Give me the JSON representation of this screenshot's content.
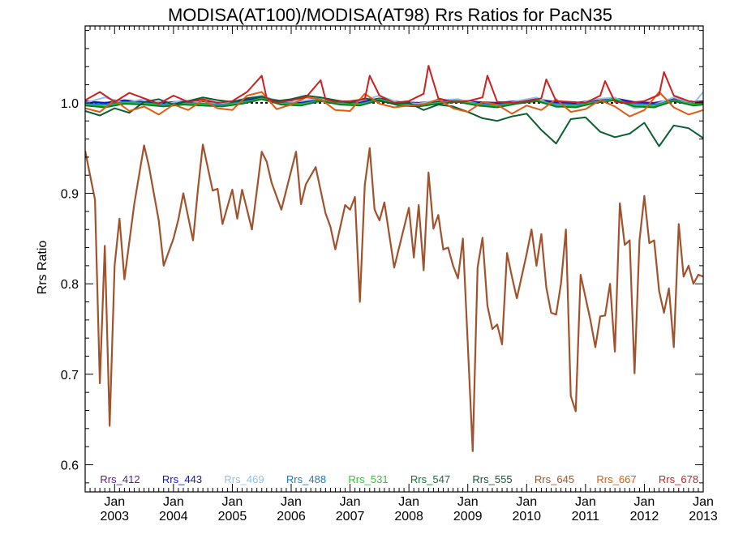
{
  "chart_data": {
    "type": "line",
    "title": "MODISA(AT100)/MODISA(AT98)  Rrs Ratios for PacN35",
    "xlabel": "",
    "ylabel": "Rrs Ratio",
    "xlim": [
      "2002-07",
      "2013-01"
    ],
    "ylim": [
      0.57,
      1.085
    ],
    "reference_line": 1.0,
    "x_ticks": [
      {
        "date": "2003-01",
        "label_top": "Jan",
        "label_bottom": "2003"
      },
      {
        "date": "2004-01",
        "label_top": "Jan",
        "label_bottom": "2004"
      },
      {
        "date": "2005-01",
        "label_top": "Jan",
        "label_bottom": "2005"
      },
      {
        "date": "2006-01",
        "label_top": "Jan",
        "label_bottom": "2006"
      },
      {
        "date": "2007-01",
        "label_top": "Jan",
        "label_bottom": "2007"
      },
      {
        "date": "2008-01",
        "label_top": "Jan",
        "label_bottom": "2008"
      },
      {
        "date": "2009-01",
        "label_top": "Jan",
        "label_bottom": "2009"
      },
      {
        "date": "2010-01",
        "label_top": "Jan",
        "label_bottom": "2010"
      },
      {
        "date": "2011-01",
        "label_top": "Jan",
        "label_bottom": "2011"
      },
      {
        "date": "2012-01",
        "label_top": "Jan",
        "label_bottom": "2012"
      },
      {
        "date": "2013-01",
        "label_top": "Jan",
        "label_bottom": "2013"
      }
    ],
    "y_ticks": [
      {
        "value": 0.6,
        "label": "0.6"
      },
      {
        "value": 0.7,
        "label": "0.7"
      },
      {
        "value": 0.8,
        "label": "0.8"
      },
      {
        "value": 0.9,
        "label": "0.9"
      },
      {
        "value": 1.0,
        "label": "1.0"
      }
    ],
    "series": [
      {
        "name": "Rrs_412",
        "color": "#5b1a8c",
        "x": [
          "2002-07",
          "2002-11",
          "2003-03",
          "2003-07",
          "2003-11",
          "2004-03",
          "2004-07",
          "2004-11",
          "2005-03",
          "2005-07",
          "2005-11",
          "2006-03",
          "2006-07",
          "2006-11",
          "2007-03",
          "2007-07",
          "2007-11",
          "2008-03",
          "2008-07",
          "2008-11",
          "2009-03",
          "2009-07",
          "2009-11",
          "2010-03",
          "2010-07",
          "2010-11",
          "2011-03",
          "2011-07",
          "2011-11",
          "2012-03",
          "2012-07",
          "2012-11",
          "2013-01"
        ],
        "values": [
          1.002,
          1.0,
          1.003,
          1.001,
          1.0,
          1.002,
          1.001,
          1.0,
          1.003,
          1.006,
          1.002,
          1.001,
          1.004,
          1.002,
          1.001,
          1.005,
          1.001,
          1.0,
          1.002,
          1.003,
          1.001,
          1.0,
          1.002,
          1.004,
          1.001,
          1.0,
          1.003,
          1.005,
          1.001,
          1.0,
          1.004,
          1.001,
          1.002
        ]
      },
      {
        "name": "Rrs_443",
        "color": "#0a14d0",
        "x": [
          "2002-07",
          "2002-11",
          "2003-03",
          "2003-07",
          "2003-11",
          "2004-03",
          "2004-07",
          "2004-11",
          "2005-03",
          "2005-07",
          "2005-11",
          "2006-03",
          "2006-07",
          "2006-11",
          "2007-03",
          "2007-07",
          "2007-11",
          "2008-03",
          "2008-07",
          "2008-11",
          "2009-03",
          "2009-07",
          "2009-11",
          "2010-03",
          "2010-07",
          "2010-11",
          "2011-03",
          "2011-07",
          "2011-11",
          "2012-03",
          "2012-07",
          "2012-11",
          "2013-01"
        ],
        "values": [
          1.001,
          1.0,
          1.002,
          1.001,
          0.999,
          1.001,
          1.0,
          0.999,
          1.002,
          1.005,
          1.001,
          1.0,
          1.003,
          1.001,
          1.0,
          1.004,
          1.0,
          0.999,
          1.001,
          1.002,
          1.0,
          0.999,
          1.001,
          1.003,
          1.0,
          0.999,
          1.002,
          1.004,
          1.0,
          0.999,
          1.003,
          1.0,
          1.001
        ]
      },
      {
        "name": "Rrs_469",
        "color": "#8fc3ea",
        "x": [
          "2002-07",
          "2002-11",
          "2003-03",
          "2003-07",
          "2003-11",
          "2004-03",
          "2004-07",
          "2004-11",
          "2005-03",
          "2005-07",
          "2005-11",
          "2006-03",
          "2006-07",
          "2006-11",
          "2007-03",
          "2007-07",
          "2007-11",
          "2008-03",
          "2008-07",
          "2008-11",
          "2009-03",
          "2009-07",
          "2009-11",
          "2010-03",
          "2010-07",
          "2010-11",
          "2011-03",
          "2011-07",
          "2011-11",
          "2012-03",
          "2012-07",
          "2012-11",
          "2013-01"
        ],
        "values": [
          1.0,
          1.006,
          1.0,
          1.004,
          0.998,
          1.003,
          1.0,
          0.999,
          1.004,
          1.008,
          1.0,
          1.002,
          1.005,
          1.0,
          1.002,
          1.008,
          1.0,
          0.999,
          1.003,
          1.004,
          0.999,
          0.996,
          1.002,
          1.006,
          0.995,
          0.998,
          1.004,
          1.006,
          0.994,
          0.998,
          1.006,
          0.999,
          1.012
        ]
      },
      {
        "name": "Rrs_488",
        "color": "#1f78c8",
        "x": [
          "2002-07",
          "2002-11",
          "2003-03",
          "2003-07",
          "2003-11",
          "2004-03",
          "2004-07",
          "2004-11",
          "2005-03",
          "2005-07",
          "2005-11",
          "2006-03",
          "2006-07",
          "2006-11",
          "2007-03",
          "2007-07",
          "2007-11",
          "2008-03",
          "2008-07",
          "2008-11",
          "2009-03",
          "2009-07",
          "2009-11",
          "2010-03",
          "2010-07",
          "2010-11",
          "2011-03",
          "2011-07",
          "2011-11",
          "2012-03",
          "2012-07",
          "2012-11",
          "2013-01"
        ],
        "values": [
          0.999,
          0.998,
          1.001,
          1.0,
          0.998,
          1.0,
          0.999,
          0.998,
          1.001,
          1.004,
          1.0,
          0.999,
          1.002,
          1.0,
          0.999,
          1.003,
          0.999,
          0.998,
          1.0,
          1.001,
          0.999,
          0.998,
          1.0,
          1.002,
          0.999,
          0.998,
          1.001,
          1.003,
          0.999,
          0.998,
          1.002,
          0.999,
          1.0
        ]
      },
      {
        "name": "Rrs_531",
        "color": "#2ec82e",
        "x": [
          "2002-07",
          "2002-11",
          "2003-03",
          "2003-07",
          "2003-11",
          "2004-03",
          "2004-07",
          "2004-11",
          "2005-03",
          "2005-07",
          "2005-11",
          "2006-03",
          "2006-07",
          "2006-11",
          "2007-03",
          "2007-07",
          "2007-11",
          "2008-03",
          "2008-07",
          "2008-11",
          "2009-03",
          "2009-07",
          "2009-11",
          "2010-03",
          "2010-07",
          "2010-11",
          "2011-03",
          "2011-07",
          "2011-11",
          "2012-03",
          "2012-07",
          "2012-11",
          "2013-01"
        ],
        "values": [
          0.998,
          0.996,
          1.0,
          0.999,
          0.997,
          0.999,
          0.998,
          0.997,
          1.0,
          1.005,
          0.999,
          0.998,
          1.003,
          0.999,
          0.998,
          1.004,
          0.998,
          0.997,
          1.0,
          1.002,
          0.998,
          0.996,
          1.0,
          1.003,
          0.997,
          0.996,
          1.001,
          1.004,
          0.997,
          0.996,
          1.003,
          0.998,
          0.999
        ]
      },
      {
        "name": "Rrs_547",
        "color": "#0a7a2a",
        "x": [
          "2002-07",
          "2002-11",
          "2003-03",
          "2003-07",
          "2003-11",
          "2004-03",
          "2004-07",
          "2004-11",
          "2005-03",
          "2005-07",
          "2005-11",
          "2006-03",
          "2006-07",
          "2006-11",
          "2007-03",
          "2007-07",
          "2007-11",
          "2008-03",
          "2008-07",
          "2008-11",
          "2009-03",
          "2009-07",
          "2009-11",
          "2010-03",
          "2010-07",
          "2010-11",
          "2011-03",
          "2011-07",
          "2011-11",
          "2012-03",
          "2012-07",
          "2012-11",
          "2013-01"
        ],
        "values": [
          0.997,
          0.995,
          0.999,
          0.998,
          0.996,
          0.998,
          0.997,
          0.996,
          0.999,
          1.004,
          0.998,
          0.997,
          1.002,
          0.998,
          0.997,
          1.003,
          0.997,
          0.996,
          0.999,
          1.001,
          0.997,
          0.995,
          0.999,
          1.002,
          0.996,
          0.995,
          1.0,
          1.003,
          0.996,
          0.995,
          1.002,
          0.997,
          0.998
        ]
      },
      {
        "name": "Rrs_555",
        "color": "#0b5e30",
        "x": [
          "2002-07",
          "2002-10",
          "2003-01",
          "2003-04",
          "2003-07",
          "2003-10",
          "2004-01",
          "2004-04",
          "2004-07",
          "2004-10",
          "2005-01",
          "2005-04",
          "2005-07",
          "2005-10",
          "2006-01",
          "2006-04",
          "2006-07",
          "2006-10",
          "2007-01",
          "2007-04",
          "2007-07",
          "2007-10",
          "2008-01",
          "2008-04",
          "2008-07",
          "2008-10",
          "2009-01",
          "2009-04",
          "2009-07",
          "2009-10",
          "2010-01",
          "2010-04",
          "2010-07",
          "2010-10",
          "2011-01",
          "2011-04",
          "2011-07",
          "2011-10",
          "2012-01",
          "2012-04",
          "2012-07",
          "2012-10",
          "2013-01"
        ],
        "values": [
          0.991,
          0.986,
          0.994,
          0.989,
          1.001,
          1.004,
          0.998,
          1.002,
          1.006,
          1.003,
          1.001,
          1.005,
          1.007,
          1.002,
          1.004,
          1.008,
          1.006,
          1.003,
          1.0,
          1.005,
          1.002,
          0.999,
          1.0,
          0.992,
          0.998,
          0.996,
          0.99,
          0.983,
          0.98,
          0.985,
          0.988,
          0.97,
          0.955,
          0.982,
          0.984,
          0.968,
          0.962,
          0.966,
          0.978,
          0.952,
          0.975,
          0.972,
          0.961
        ]
      },
      {
        "name": "Rrs_645",
        "color": "#a0522d",
        "x": [
          "2002-07",
          "2002-09",
          "2002-10",
          "2002-11",
          "2002-12",
          "2003-01",
          "2003-02",
          "2003-03",
          "2003-05",
          "2003-07",
          "2003-08",
          "2003-10",
          "2003-11",
          "2004-01",
          "2004-02",
          "2004-03",
          "2004-05",
          "2004-06",
          "2004-07",
          "2004-09",
          "2004-10",
          "2004-11",
          "2005-01",
          "2005-02",
          "2005-03",
          "2005-05",
          "2005-07",
          "2005-08",
          "2005-09",
          "2005-11",
          "2006-01",
          "2006-02",
          "2006-03",
          "2006-04",
          "2006-06",
          "2006-08",
          "2006-09",
          "2006-10",
          "2006-12",
          "2007-01",
          "2007-02",
          "2007-03",
          "2007-04",
          "2007-05",
          "2007-06",
          "2007-07",
          "2007-08",
          "2007-10",
          "2008-01",
          "2008-02",
          "2008-03",
          "2008-04",
          "2008-05",
          "2008-06",
          "2008-07",
          "2008-08",
          "2008-09",
          "2008-10",
          "2008-11",
          "2008-12",
          "2009-02",
          "2009-03",
          "2009-04",
          "2009-05",
          "2009-06",
          "2009-07",
          "2009-08",
          "2009-09",
          "2009-10",
          "2009-11",
          "2010-01",
          "2010-02",
          "2010-03",
          "2010-04",
          "2010-05",
          "2010-06",
          "2010-07",
          "2010-08",
          "2010-09",
          "2010-10",
          "2010-11",
          "2010-12",
          "2011-02",
          "2011-03",
          "2011-04",
          "2011-05",
          "2011-06",
          "2011-07",
          "2011-08",
          "2011-09",
          "2011-10",
          "2011-11",
          "2011-12",
          "2012-01",
          "2012-02",
          "2012-03",
          "2012-04",
          "2012-05",
          "2012-06",
          "2012-07",
          "2012-08",
          "2012-09",
          "2012-10",
          "2012-11",
          "2012-12",
          "2013-01"
        ],
        "values": [
          0.947,
          0.893,
          0.69,
          0.842,
          0.643,
          0.82,
          0.872,
          0.805,
          0.888,
          0.953,
          0.93,
          0.87,
          0.82,
          0.85,
          0.871,
          0.9,
          0.848,
          0.905,
          0.954,
          0.903,
          0.905,
          0.866,
          0.904,
          0.872,
          0.904,
          0.86,
          0.946,
          0.935,
          0.912,
          0.882,
          0.925,
          0.946,
          0.888,
          0.91,
          0.929,
          0.878,
          0.863,
          0.838,
          0.887,
          0.882,
          0.896,
          0.78,
          0.909,
          0.95,
          0.882,
          0.87,
          0.89,
          0.818,
          0.884,
          0.829,
          0.887,
          0.815,
          0.923,
          0.861,
          0.876,
          0.838,
          0.84,
          0.82,
          0.806,
          0.85,
          0.615,
          0.818,
          0.851,
          0.776,
          0.75,
          0.755,
          0.733,
          0.834,
          0.808,
          0.784,
          0.833,
          0.86,
          0.82,
          0.855,
          0.796,
          0.768,
          0.766,
          0.8,
          0.86,
          0.676,
          0.659,
          0.81,
          0.76,
          0.73,
          0.764,
          0.765,
          0.8,
          0.725,
          0.889,
          0.843,
          0.848,
          0.701,
          0.848,
          0.897,
          0.845,
          0.848,
          0.792,
          0.768,
          0.795,
          0.73,
          0.866,
          0.808,
          0.82,
          0.8,
          0.81,
          0.808
        ]
      },
      {
        "name": "Rrs_667",
        "color": "#e05a10",
        "x": [
          "2002-07",
          "2002-10",
          "2003-01",
          "2003-04",
          "2003-07",
          "2003-10",
          "2004-01",
          "2004-04",
          "2004-07",
          "2004-10",
          "2005-01",
          "2005-04",
          "2005-07",
          "2005-10",
          "2006-01",
          "2006-04",
          "2006-07",
          "2006-10",
          "2007-01",
          "2007-04",
          "2007-07",
          "2007-10",
          "2008-01",
          "2008-04",
          "2008-07",
          "2008-10",
          "2009-01",
          "2009-04",
          "2009-07",
          "2009-10",
          "2010-01",
          "2010-04",
          "2010-07",
          "2010-10",
          "2011-01",
          "2011-04",
          "2011-07",
          "2011-10",
          "2012-01",
          "2012-04",
          "2012-07",
          "2012-10",
          "2013-01"
        ],
        "values": [
          0.994,
          0.99,
          1.003,
          0.991,
          0.996,
          0.987,
          0.998,
          0.992,
          1.003,
          0.994,
          0.992,
          1.008,
          1.012,
          0.993,
          0.998,
          1.006,
          1.004,
          0.992,
          0.991,
          1.01,
          0.999,
          0.995,
          0.997,
          0.998,
          1.004,
          0.994,
          0.99,
          1.001,
          0.998,
          0.988,
          0.997,
          0.992,
          1.004,
          0.99,
          0.993,
          1.003,
          0.996,
          0.985,
          0.992,
          1.012,
          0.995,
          0.987,
          0.992
        ]
      },
      {
        "name": "Rrs_678",
        "color": "#cc1f1f",
        "x": [
          "2002-07",
          "2002-10",
          "2003-01",
          "2003-04",
          "2003-07",
          "2003-10",
          "2004-01",
          "2004-04",
          "2004-07",
          "2004-10",
          "2005-01",
          "2005-04",
          "2005-07",
          "2005-08",
          "2005-10",
          "2006-01",
          "2006-04",
          "2006-07",
          "2006-08",
          "2006-10",
          "2007-01",
          "2007-04",
          "2007-05",
          "2007-07",
          "2007-10",
          "2008-01",
          "2008-04",
          "2008-05",
          "2008-07",
          "2008-10",
          "2009-01",
          "2009-04",
          "2009-05",
          "2009-07",
          "2009-10",
          "2010-01",
          "2010-04",
          "2010-05",
          "2010-07",
          "2010-10",
          "2011-01",
          "2011-04",
          "2011-05",
          "2011-07",
          "2011-10",
          "2012-01",
          "2012-04",
          "2012-05",
          "2012-07",
          "2012-10",
          "2013-01"
        ],
        "values": [
          1.003,
          1.012,
          1.001,
          1.011,
          1.005,
          0.999,
          1.008,
          1.001,
          1.004,
          1.0,
          1.002,
          1.012,
          1.03,
          1.005,
          1.0,
          1.003,
          1.006,
          1.025,
          1.004,
          1.001,
          1.002,
          1.004,
          1.03,
          1.008,
          1.0,
          1.002,
          1.01,
          1.041,
          1.005,
          1.001,
          1.002,
          1.006,
          1.03,
          1.001,
          1.0,
          1.002,
          1.005,
          1.026,
          1.002,
          1.001,
          1.0,
          1.008,
          1.024,
          1.001,
          1.0,
          1.002,
          1.009,
          1.034,
          1.008,
          1.002,
          1.0
        ]
      }
    ]
  }
}
